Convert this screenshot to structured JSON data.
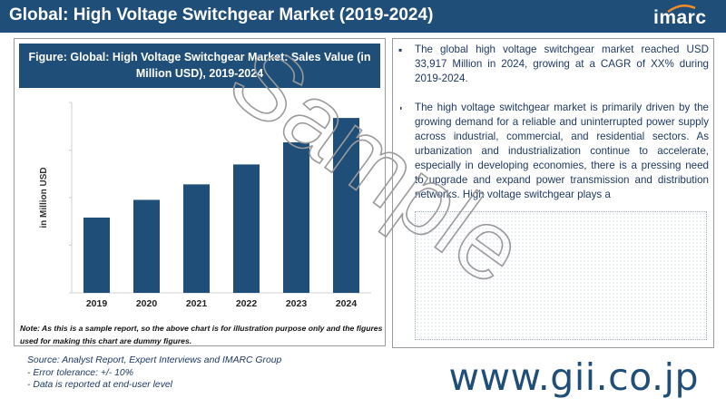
{
  "header": {
    "title": "Global: High Voltage Switchgear Market (2019-2024)",
    "logo_text": "imarc"
  },
  "chart_panel": {
    "note": "Note: As this is a sample report, so the above chart is for illustration purpose only and the figures used for making this chart are dummy figures."
  },
  "chart_data": {
    "type": "bar",
    "title": "Figure: Global: High Voltage Switchgear Market: Sales Value (in Million USD), 2019-2024",
    "ylabel": "in Million USD",
    "xlabel": "",
    "categories": [
      "2019",
      "2020",
      "2021",
      "2022",
      "2023",
      "2024"
    ],
    "values": [
      17000,
      21000,
      24500,
      29000,
      34000,
      39500
    ],
    "ylim": [
      0,
      43000
    ],
    "grid": false,
    "bar_color": "#1f4e79"
  },
  "summary": {
    "paragraphs": [
      "The global high voltage switchgear market reached USD 33,917 Million in 2024, growing at a CAGR of XX% during 2019-2024.",
      "The high voltage switchgear market is primarily driven by the growing demand for a reliable and uninterrupted power supply across industrial, commercial, and residential sectors. As urbanization and industrialization continue to accelerate, especially in developing economies, there is a pressing need to upgrade and expand power transmission and distribution networks. High voltage switchgear plays a"
    ]
  },
  "footer": {
    "source_lines": [
      "Source: Analyst Report, Expert Interviews and IMARC Group",
      "- Error tolerance: +/- 10%",
      "- Data is reported at end-user level"
    ],
    "website": "www.gii.co.jp"
  },
  "watermark": {
    "text": "Sample",
    "color": "#9a9a9a"
  }
}
